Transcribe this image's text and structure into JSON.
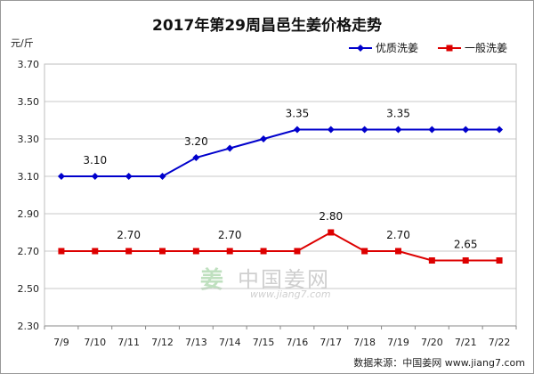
{
  "title": "2017年第29周昌邑生姜价格走势",
  "y_unit": "元/斤",
  "source": "数据来源：中国姜网 www.jiang7.com",
  "watermark": {
    "logo": "姜",
    "text": "中国姜网",
    "url": "www.jiang7.com"
  },
  "chart_data": {
    "type": "line",
    "title": "2017年第29周昌邑生姜价格走势",
    "xlabel": "",
    "ylabel": "元/斤",
    "categories": [
      "7/9",
      "7/10",
      "7/11",
      "7/12",
      "7/13",
      "7/14",
      "7/15",
      "7/16",
      "7/17",
      "7/18",
      "7/19",
      "7/20",
      "7/21",
      "7/22"
    ],
    "ylim": [
      2.3,
      3.7
    ],
    "yticks": [
      "3.70",
      "3.50",
      "3.30",
      "3.10",
      "2.90",
      "2.70",
      "2.50",
      "2.30"
    ],
    "grid": "horizontal",
    "legend_position": "top-right",
    "series": [
      {
        "name": "优质洗姜",
        "color": "#0000cc",
        "values": [
          3.1,
          3.1,
          3.1,
          3.1,
          3.2,
          3.25,
          3.3,
          3.35,
          3.35,
          3.35,
          3.35,
          3.35,
          3.35,
          3.35
        ],
        "labels": [
          {
            "index": 1,
            "text": "3.10"
          },
          {
            "index": 4,
            "text": "3.20"
          },
          {
            "index": 7,
            "text": "3.35"
          },
          {
            "index": 10,
            "text": "3.35"
          }
        ]
      },
      {
        "name": "一般洗姜",
        "color": "#dd0000",
        "values": [
          2.7,
          2.7,
          2.7,
          2.7,
          2.7,
          2.7,
          2.7,
          2.7,
          2.8,
          2.7,
          2.7,
          2.65,
          2.65,
          2.65
        ],
        "labels": [
          {
            "index": 2,
            "text": "2.70"
          },
          {
            "index": 5,
            "text": "2.70"
          },
          {
            "index": 8,
            "text": "2.80"
          },
          {
            "index": 10,
            "text": "2.70"
          },
          {
            "index": 12,
            "text": "2.65"
          }
        ]
      }
    ]
  }
}
